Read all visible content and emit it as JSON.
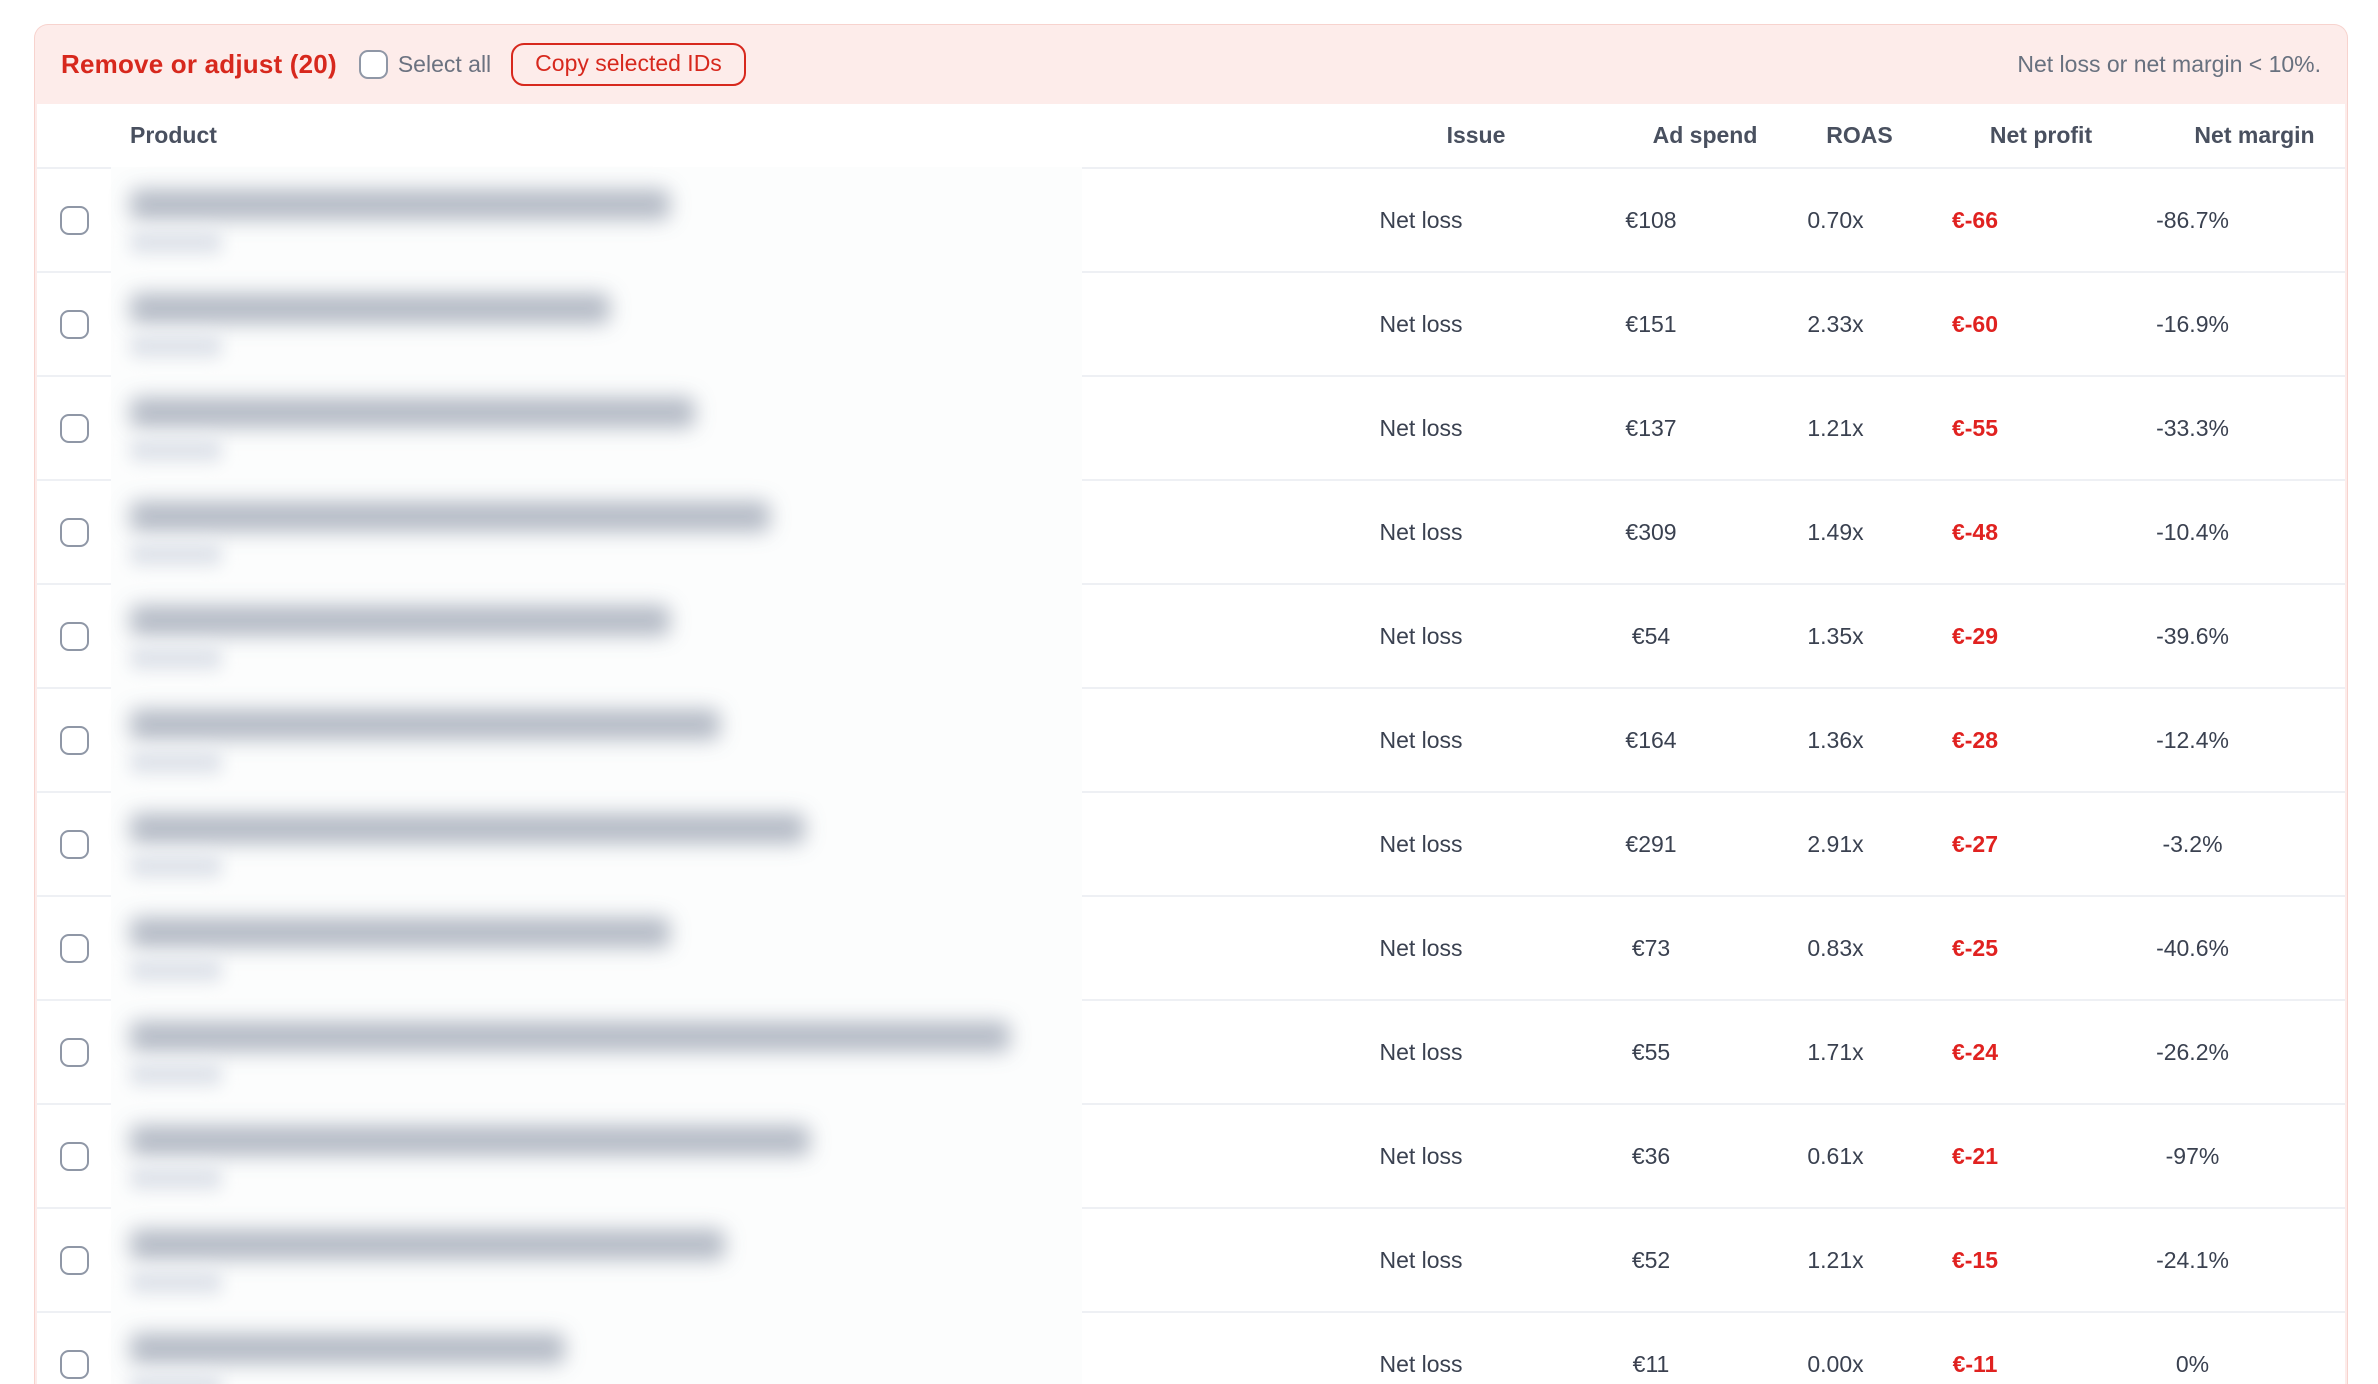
{
  "banner": {
    "title": "Remove or adjust (20)",
    "select_all_label": "Select all",
    "copy_button_label": "Copy selected IDs",
    "criteria_note": "Net loss or net margin < 10%.",
    "background_color": "#fdecea",
    "accent_red": "#d7281d"
  },
  "table": {
    "columns": [
      "Product",
      "Issue",
      "Ad spend",
      "ROAS",
      "Net profit",
      "Net margin"
    ],
    "net_profit_color": "#e02220",
    "rows": [
      {
        "issue": "Net loss",
        "ad_spend": "€108",
        "roas": "0.70x",
        "net_profit": "€-66",
        "net_margin": "-86.7%"
      },
      {
        "issue": "Net loss",
        "ad_spend": "€151",
        "roas": "2.33x",
        "net_profit": "€-60",
        "net_margin": "-16.9%"
      },
      {
        "issue": "Net loss",
        "ad_spend": "€137",
        "roas": "1.21x",
        "net_profit": "€-55",
        "net_margin": "-33.3%"
      },
      {
        "issue": "Net loss",
        "ad_spend": "€309",
        "roas": "1.49x",
        "net_profit": "€-48",
        "net_margin": "-10.4%"
      },
      {
        "issue": "Net loss",
        "ad_spend": "€54",
        "roas": "1.35x",
        "net_profit": "€-29",
        "net_margin": "-39.6%"
      },
      {
        "issue": "Net loss",
        "ad_spend": "€164",
        "roas": "1.36x",
        "net_profit": "€-28",
        "net_margin": "-12.4%"
      },
      {
        "issue": "Net loss",
        "ad_spend": "€291",
        "roas": "2.91x",
        "net_profit": "€-27",
        "net_margin": "-3.2%"
      },
      {
        "issue": "Net loss",
        "ad_spend": "€73",
        "roas": "0.83x",
        "net_profit": "€-25",
        "net_margin": "-40.6%"
      },
      {
        "issue": "Net loss",
        "ad_spend": "€55",
        "roas": "1.71x",
        "net_profit": "€-24",
        "net_margin": "-26.2%"
      },
      {
        "issue": "Net loss",
        "ad_spend": "€36",
        "roas": "0.61x",
        "net_profit": "€-21",
        "net_margin": "-97%"
      },
      {
        "issue": "Net loss",
        "ad_spend": "€52",
        "roas": "1.21x",
        "net_profit": "€-15",
        "net_margin": "-24.1%"
      },
      {
        "issue": "Net loss",
        "ad_spend": "€11",
        "roas": "0.00x",
        "net_profit": "€-11",
        "net_margin": "0%"
      }
    ]
  }
}
